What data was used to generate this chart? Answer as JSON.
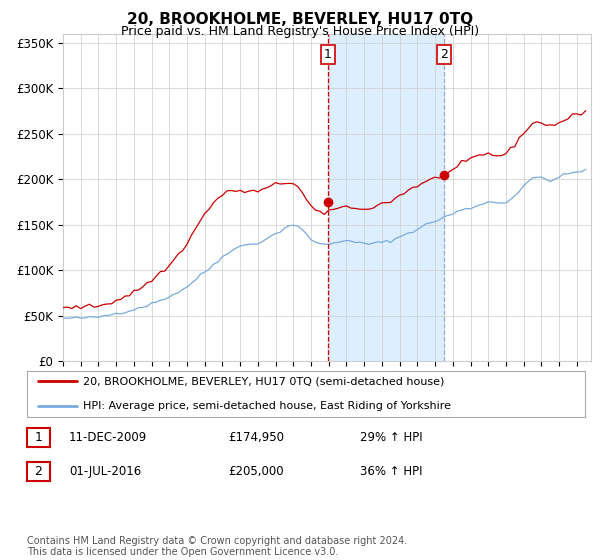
{
  "title": "20, BROOKHOLME, BEVERLEY, HU17 0TQ",
  "subtitle": "Price paid vs. HM Land Registry's House Price Index (HPI)",
  "title_fontsize": 11,
  "subtitle_fontsize": 9,
  "ylabel_ticks": [
    "£0",
    "£50K",
    "£100K",
    "£150K",
    "£200K",
    "£250K",
    "£300K",
    "£350K"
  ],
  "ytick_values": [
    0,
    50000,
    100000,
    150000,
    200000,
    250000,
    300000,
    350000
  ],
  "ylim": [
    0,
    360000
  ],
  "xlim_start": 1995.0,
  "xlim_end": 2024.8,
  "sale1": {
    "date_num": 2009.94,
    "price": 174950,
    "label": "1",
    "pct": "29%",
    "date_str": "11-DEC-2009"
  },
  "sale2": {
    "date_num": 2016.5,
    "price": 205000,
    "label": "2",
    "pct": "36%",
    "date_str": "01-JUL-2016"
  },
  "legend_line1": "20, BROOKHOLME, BEVERLEY, HU17 0TQ (semi-detached house)",
  "legend_line2": "HPI: Average price, semi-detached house, East Riding of Yorkshire",
  "footnote": "Contains HM Land Registry data © Crown copyright and database right 2024.\nThis data is licensed under the Open Government Licence v3.0.",
  "sale_table": [
    {
      "num": "1",
      "date": "11-DEC-2009",
      "price": "£174,950",
      "hpi": "29% ↑ HPI"
    },
    {
      "num": "2",
      "date": "01-JUL-2016",
      "price": "£205,000",
      "hpi": "36% ↑ HPI"
    }
  ],
  "red_color": "#cc0000",
  "blue_color": "#7aaadd",
  "grid_color": "#cccccc",
  "sale_box_color": "#cc0000",
  "sale2_vline_color": "#99aacc",
  "shaded_region_color": "#ddeeff",
  "background_color": "#ffffff",
  "hpi_years": [
    1995,
    1995.25,
    1995.5,
    1995.75,
    1996,
    1996.25,
    1996.5,
    1996.75,
    1997,
    1997.25,
    1997.5,
    1997.75,
    1998,
    1998.25,
    1998.5,
    1998.75,
    1999,
    1999.25,
    1999.5,
    1999.75,
    2000,
    2000.25,
    2000.5,
    2000.75,
    2001,
    2001.25,
    2001.5,
    2001.75,
    2002,
    2002.25,
    2002.5,
    2002.75,
    2003,
    2003.25,
    2003.5,
    2003.75,
    2004,
    2004.25,
    2004.5,
    2004.75,
    2005,
    2005.25,
    2005.5,
    2005.75,
    2006,
    2006.25,
    2006.5,
    2006.75,
    2007,
    2007.25,
    2007.5,
    2007.75,
    2008,
    2008.25,
    2008.5,
    2008.75,
    2009,
    2009.25,
    2009.5,
    2009.75,
    2010,
    2010.25,
    2010.5,
    2010.75,
    2011,
    2011.25,
    2011.5,
    2011.75,
    2012,
    2012.25,
    2012.5,
    2012.75,
    2013,
    2013.25,
    2013.5,
    2013.75,
    2014,
    2014.25,
    2014.5,
    2014.75,
    2015,
    2015.25,
    2015.5,
    2015.75,
    2016,
    2016.25,
    2016.5,
    2016.75,
    2017,
    2017.25,
    2017.5,
    2017.75,
    2018,
    2018.25,
    2018.5,
    2018.75,
    2019,
    2019.25,
    2019.5,
    2019.75,
    2020,
    2020.25,
    2020.5,
    2020.75,
    2021,
    2021.25,
    2021.5,
    2021.75,
    2022,
    2022.25,
    2022.5,
    2022.75,
    2023,
    2023.25,
    2023.5,
    2023.75,
    2024,
    2024.25,
    2024.5
  ],
  "hpi_values": [
    47000,
    47200,
    47100,
    47300,
    47500,
    47700,
    47800,
    48000,
    48500,
    49500,
    50500,
    51500,
    52500,
    53500,
    54500,
    55500,
    57000,
    58500,
    60000,
    61500,
    63000,
    65000,
    67000,
    69000,
    71000,
    73500,
    76000,
    78500,
    82000,
    86000,
    90000,
    94000,
    98000,
    102000,
    106000,
    110000,
    115000,
    119000,
    122000,
    124000,
    126000,
    127500,
    128500,
    129000,
    130000,
    132000,
    135000,
    137000,
    140000,
    143000,
    146000,
    149000,
    150000,
    148000,
    144000,
    139000,
    134000,
    131000,
    129000,
    128000,
    128500,
    130000,
    131500,
    132500,
    132000,
    131000,
    130500,
    130000,
    129500,
    129000,
    129500,
    130000,
    130500,
    131500,
    132500,
    134000,
    136500,
    139000,
    141000,
    143000,
    145000,
    147500,
    150000,
    152500,
    154000,
    156000,
    158000,
    160000,
    162000,
    164500,
    166000,
    167000,
    168000,
    170000,
    172000,
    174000,
    175000,
    174500,
    174000,
    174000,
    175000,
    178000,
    182000,
    187000,
    193000,
    197000,
    200000,
    202000,
    202000,
    200000,
    199000,
    200000,
    202000,
    204000,
    206000,
    207000,
    208000,
    209000,
    210000
  ],
  "red_years": [
    1995,
    1995.25,
    1995.5,
    1995.75,
    1996,
    1996.25,
    1996.5,
    1996.75,
    1997,
    1997.25,
    1997.5,
    1997.75,
    1998,
    1998.25,
    1998.5,
    1998.75,
    1999,
    1999.25,
    1999.5,
    1999.75,
    2000,
    2000.25,
    2000.5,
    2000.75,
    2001,
    2001.25,
    2001.5,
    2001.75,
    2002,
    2002.25,
    2002.5,
    2002.75,
    2003,
    2003.25,
    2003.5,
    2003.75,
    2004,
    2004.25,
    2004.5,
    2004.75,
    2005,
    2005.25,
    2005.5,
    2005.75,
    2006,
    2006.25,
    2006.5,
    2006.75,
    2007,
    2007.25,
    2007.5,
    2007.75,
    2008,
    2008.25,
    2008.5,
    2008.75,
    2009,
    2009.25,
    2009.5,
    2009.75,
    2010,
    2010.25,
    2010.5,
    2010.75,
    2011,
    2011.25,
    2011.5,
    2011.75,
    2012,
    2012.25,
    2012.5,
    2012.75,
    2013,
    2013.25,
    2013.5,
    2013.75,
    2014,
    2014.25,
    2014.5,
    2014.75,
    2015,
    2015.25,
    2015.5,
    2015.75,
    2016,
    2016.25,
    2016.5,
    2016.75,
    2017,
    2017.25,
    2017.5,
    2017.75,
    2018,
    2018.25,
    2018.5,
    2018.75,
    2019,
    2019.25,
    2019.5,
    2019.75,
    2020,
    2020.25,
    2020.5,
    2020.75,
    2021,
    2021.25,
    2021.5,
    2021.75,
    2022,
    2022.25,
    2022.5,
    2022.75,
    2023,
    2023.25,
    2023.5,
    2023.75,
    2024,
    2024.25,
    2024.5
  ],
  "red_values": [
    58000,
    58500,
    59000,
    59200,
    59500,
    59800,
    60000,
    60500,
    61000,
    62000,
    63500,
    65000,
    67000,
    69000,
    71000,
    73000,
    76000,
    79000,
    82000,
    85500,
    89000,
    93000,
    97000,
    101000,
    105000,
    111000,
    117000,
    123000,
    130000,
    138000,
    146000,
    154000,
    162000,
    168000,
    174000,
    179000,
    183000,
    185000,
    187000,
    188000,
    187000,
    186500,
    186000,
    186500,
    187000,
    188000,
    190000,
    192000,
    194000,
    195000,
    196000,
    196500,
    196000,
    192000,
    185000,
    177000,
    170000,
    166000,
    163000,
    161500,
    163000,
    166000,
    169000,
    171000,
    170000,
    168500,
    167000,
    166500,
    167000,
    168000,
    170000,
    172000,
    173000,
    174000,
    176000,
    179000,
    182000,
    185000,
    188000,
    191000,
    193000,
    195000,
    197000,
    199000,
    201000,
    203000,
    205000,
    207000,
    210000,
    213000,
    216000,
    219000,
    222000,
    224000,
    226000,
    227000,
    228000,
    227000,
    226000,
    226500,
    228000,
    232000,
    238000,
    245000,
    252000,
    256000,
    260000,
    263000,
    263000,
    260000,
    259000,
    260000,
    262000,
    264000,
    267000,
    269000,
    271000,
    273000,
    275000
  ]
}
